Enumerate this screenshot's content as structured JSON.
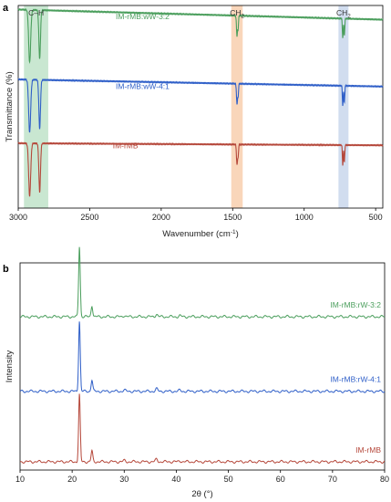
{
  "chart_data": [
    {
      "type": "line",
      "panel_label": "a",
      "xlabel": "Wavenumber (cm",
      "xlabel_sup": "-1",
      "xlabel_end": ")",
      "ylabel": "Transmittance (%)",
      "xlim": [
        3000,
        450
      ],
      "x_reversed": true,
      "xticks": [
        3000,
        2500,
        2000,
        1500,
        1000,
        500
      ],
      "bands": [
        {
          "name": "C–H",
          "from": 2960,
          "to": 2790,
          "color": "#bfe3c9"
        },
        {
          "name_main": "CH",
          "name_sub": "2",
          "from": 1510,
          "to": 1430,
          "color": "#f8cfae"
        },
        {
          "name_main": "CH",
          "name_sub": "2",
          "from": 760,
          "to": 690,
          "color": "#c9d7ec"
        }
      ],
      "series": [
        {
          "name": "IM-rMB:wW-3:2",
          "color": "#4a9e5c",
          "baseline": 0.93,
          "slope": 0.05
        },
        {
          "name": "IM-rMB:wW-4:1",
          "color": "#2f5fc8",
          "baseline": 0.6,
          "slope": 0.035
        },
        {
          "name": "IM-rMB",
          "color": "#b5473a",
          "baseline": 0.31,
          "slope": 0.01
        }
      ],
      "peaks": [
        {
          "x": 2920,
          "depth": 0.26,
          "width": 10
        },
        {
          "x": 2850,
          "depth": 0.24,
          "width": 8
        },
        {
          "x": 1470,
          "depth": 0.1,
          "width": 5
        },
        {
          "x": 1462,
          "depth": 0.06,
          "width": 4
        },
        {
          "x": 730,
          "depth": 0.1,
          "width": 4
        },
        {
          "x": 719,
          "depth": 0.085,
          "width": 4
        }
      ]
    },
    {
      "type": "line",
      "panel_label": "b",
      "xlabel": "2θ (°)",
      "ylabel": "Intensity",
      "xlim": [
        10,
        80
      ],
      "xticks": [
        10,
        20,
        30,
        40,
        50,
        60,
        70,
        80
      ],
      "series": [
        {
          "name": "IM-rMB:rW-3:2",
          "color": "#4a9e5c",
          "baseline": 0.74,
          "peak_scale": 1.0
        },
        {
          "name": "IM-rMB:rW-4:1",
          "color": "#2f5fc8",
          "baseline": 0.38,
          "peak_scale": 1.0
        },
        {
          "name": "IM-rMB",
          "color": "#b5473a",
          "baseline": 0.04,
          "peak_scale": 0.95
        }
      ],
      "peaks": [
        {
          "x": 21.4,
          "height": 0.34,
          "width": 0.22
        },
        {
          "x": 23.8,
          "height": 0.055,
          "width": 0.22
        },
        {
          "x": 30.0,
          "height": 0.006,
          "width": 0.3
        },
        {
          "x": 36.2,
          "height": 0.012,
          "width": 0.3
        },
        {
          "x": 40.7,
          "height": 0.005,
          "width": 0.3
        }
      ]
    }
  ]
}
